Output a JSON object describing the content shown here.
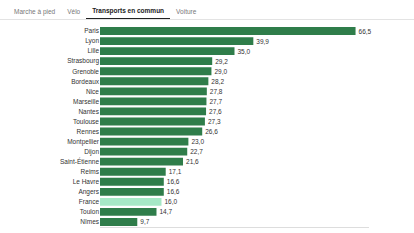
{
  "tabs": [
    "Marche à pied",
    "Vélo",
    "Transports en commun",
    "Voiture"
  ],
  "active_tab": "Transports en commun",
  "chart_data": {
    "type": "bar",
    "orientation": "horizontal",
    "categories": [
      "Paris",
      "Lyon",
      "Lille",
      "Strasbourg",
      "Grenoble",
      "Bordeaux",
      "Nice",
      "Marseille",
      "Nantes",
      "Toulouse",
      "Rennes",
      "Montpellier",
      "Dijon",
      "Saint-Étienne",
      "Reims",
      "Le Havre",
      "Angers",
      "France",
      "Toulon",
      "Nîmes"
    ],
    "values": [
      66.5,
      39.9,
      35.0,
      29.2,
      29.0,
      28.2,
      27.8,
      27.7,
      27.6,
      27.3,
      26.6,
      23.0,
      22.7,
      21.6,
      17.1,
      16.6,
      16.6,
      16.0,
      14.7,
      9.7
    ],
    "value_labels": [
      "66,5",
      "39,9",
      "35,0",
      "29,2",
      "29,0",
      "28,2",
      "27,8",
      "27,7",
      "27,6",
      "27,3",
      "26,6",
      "23,0",
      "22,7",
      "21,6",
      "17,1",
      "16,6",
      "16,6",
      "16,0",
      "14,7",
      "9,7"
    ],
    "colors": [
      "#2f7d4a",
      "#2f7d4a",
      "#2f7d4a",
      "#2f7d4a",
      "#2f7d4a",
      "#2f7d4a",
      "#2f7d4a",
      "#2f7d4a",
      "#2f7d4a",
      "#2f7d4a",
      "#2f7d4a",
      "#2f7d4a",
      "#2f7d4a",
      "#2f7d4a",
      "#2f7d4a",
      "#2f7d4a",
      "#2f7d4a",
      "#a6e8c6",
      "#2f7d4a",
      "#2f7d4a"
    ],
    "xlim": [
      0,
      70
    ],
    "data_labels": true,
    "tick_labels": "y",
    "grid": false
  }
}
